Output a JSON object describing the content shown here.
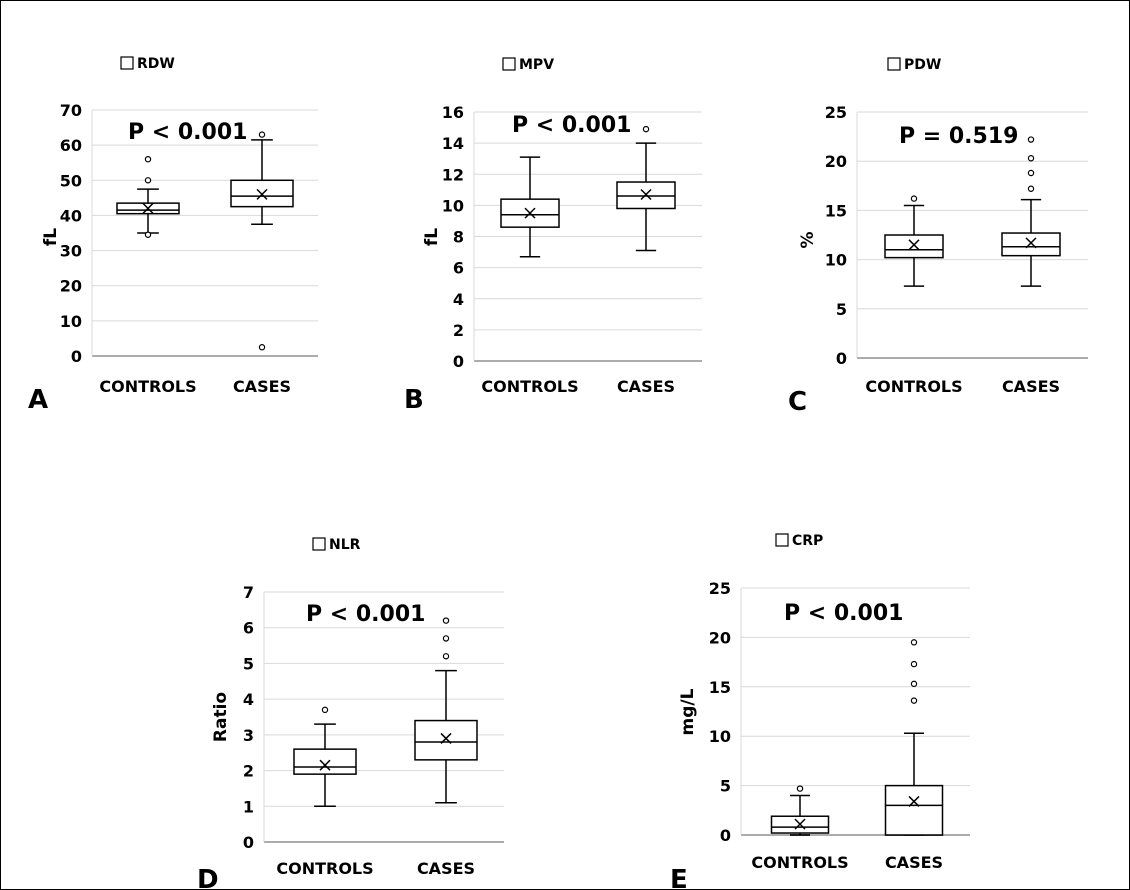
{
  "chart_data": [
    {
      "type": "box",
      "panel_label": "A",
      "legend": "RDW",
      "ylabel": "fL",
      "p_value": "P < 0.001",
      "ylim": [
        0,
        70
      ],
      "yticks": [
        0,
        10,
        20,
        30,
        40,
        50,
        60,
        70
      ],
      "grid": true,
      "categories": [
        "CONTROLS",
        "CASES"
      ],
      "boxes": [
        {
          "category": "CONTROLS",
          "whisker_low": 35,
          "q1": 40.5,
          "median": 41.5,
          "q3": 43.5,
          "whisker_high": 47.5,
          "mean": 42,
          "outliers": [
            56,
            50,
            34.5
          ]
        },
        {
          "category": "CASES",
          "whisker_low": 37.5,
          "q1": 42.5,
          "median": 45.5,
          "q3": 50,
          "whisker_high": 61.5,
          "mean": 46,
          "outliers": [
            63,
            2.5
          ]
        }
      ]
    },
    {
      "type": "box",
      "panel_label": "B",
      "legend": "MPV",
      "ylabel": "fL",
      "p_value": "P < 0.001",
      "ylim": [
        0,
        16
      ],
      "yticks": [
        0,
        2,
        4,
        6,
        8,
        10,
        12,
        14,
        16
      ],
      "grid": true,
      "categories": [
        "CONTROLS",
        "CASES"
      ],
      "boxes": [
        {
          "category": "CONTROLS",
          "whisker_low": 6.7,
          "q1": 8.6,
          "median": 9.4,
          "q3": 10.4,
          "whisker_high": 13.1,
          "mean": 9.5,
          "outliers": []
        },
        {
          "category": "CASES",
          "whisker_low": 7.1,
          "q1": 9.8,
          "median": 10.6,
          "q3": 11.5,
          "whisker_high": 14.0,
          "mean": 10.7,
          "outliers": [
            14.9
          ]
        }
      ]
    },
    {
      "type": "box",
      "panel_label": "C",
      "legend": "PDW",
      "ylabel": "%",
      "p_value": "P = 0.519",
      "ylim": [
        0,
        25
      ],
      "yticks": [
        0,
        5,
        10,
        15,
        20,
        25
      ],
      "grid": true,
      "categories": [
        "CONTROLS",
        "CASES"
      ],
      "boxes": [
        {
          "category": "CONTROLS",
          "whisker_low": 7.3,
          "q1": 10.2,
          "median": 11.0,
          "q3": 12.5,
          "whisker_high": 15.5,
          "mean": 11.5,
          "outliers": [
            16.2
          ]
        },
        {
          "category": "CASES",
          "whisker_low": 7.3,
          "q1": 10.4,
          "median": 11.3,
          "q3": 12.7,
          "whisker_high": 16.1,
          "mean": 11.7,
          "outliers": [
            22.2,
            20.3,
            18.8,
            17.2
          ]
        }
      ]
    },
    {
      "type": "box",
      "panel_label": "D",
      "legend": "NLR",
      "ylabel": "Ratio",
      "p_value": "P < 0.001",
      "ylim": [
        0,
        7
      ],
      "yticks": [
        0,
        1,
        2,
        3,
        4,
        5,
        6,
        7
      ],
      "grid": true,
      "categories": [
        "CONTROLS",
        "CASES"
      ],
      "boxes": [
        {
          "category": "CONTROLS",
          "whisker_low": 1.0,
          "q1": 1.9,
          "median": 2.1,
          "q3": 2.6,
          "whisker_high": 3.3,
          "mean": 2.15,
          "outliers": [
            3.7
          ]
        },
        {
          "category": "CASES",
          "whisker_low": 1.1,
          "q1": 2.3,
          "median": 2.8,
          "q3": 3.4,
          "whisker_high": 4.8,
          "mean": 2.9,
          "outliers": [
            6.2,
            5.7,
            5.2
          ]
        }
      ]
    },
    {
      "type": "box",
      "panel_label": "E",
      "legend": "CRP",
      "ylabel": "mg/L",
      "p_value": "P < 0.001",
      "ylim": [
        0,
        25
      ],
      "yticks": [
        0,
        5,
        10,
        15,
        20,
        25
      ],
      "grid": true,
      "categories": [
        "CONTROLS",
        "CASES"
      ],
      "boxes": [
        {
          "category": "CONTROLS",
          "whisker_low": 0,
          "q1": 0.2,
          "median": 0.8,
          "q3": 1.9,
          "whisker_high": 4.0,
          "mean": 1.1,
          "outliers": [
            4.7
          ]
        },
        {
          "category": "CASES",
          "whisker_low": 0,
          "q1": 0,
          "median": 3.0,
          "q3": 5.0,
          "whisker_high": 10.3,
          "mean": 3.4,
          "outliers": [
            19.5,
            17.3,
            15.3,
            13.6
          ]
        }
      ]
    }
  ]
}
